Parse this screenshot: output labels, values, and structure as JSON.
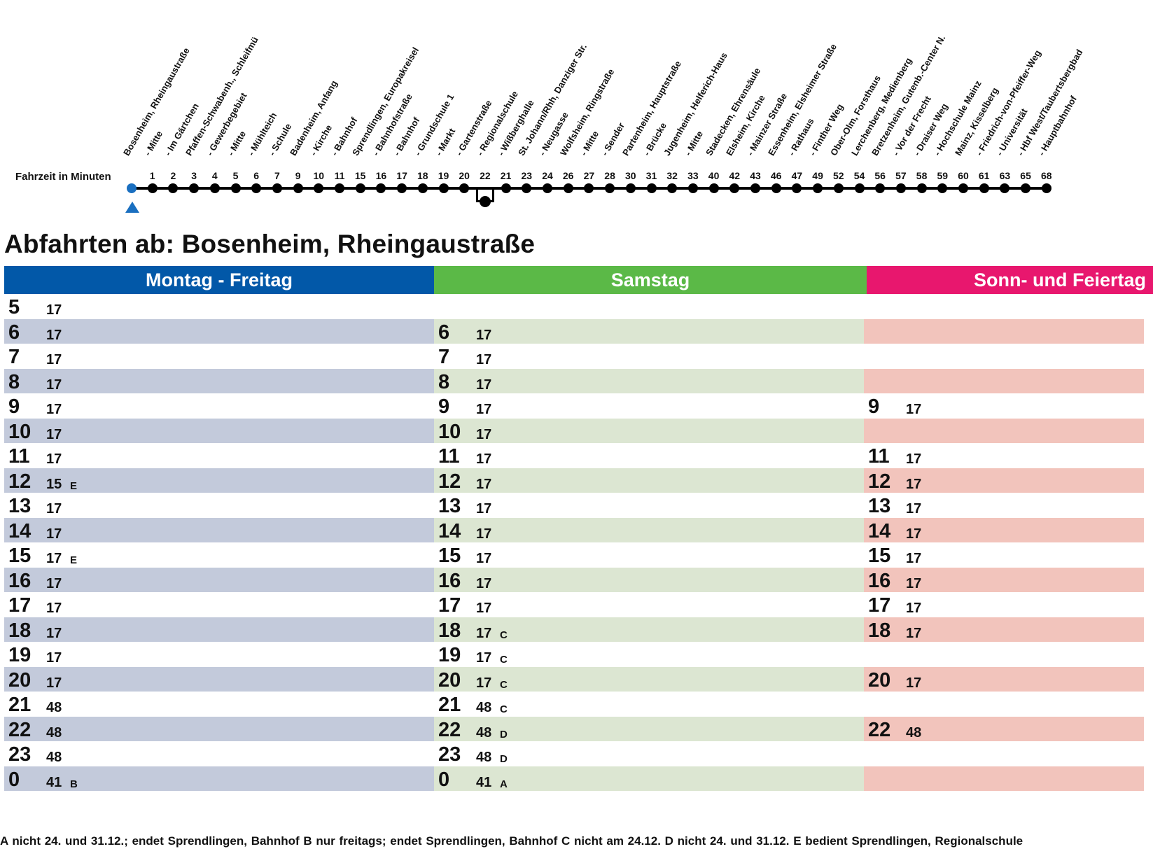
{
  "route": {
    "label": "Fahrzeit in Minuten",
    "stops": [
      {
        "name": "Bosenheim, Rheingaustraße",
        "min": ""
      },
      {
        "name": "- Mitte",
        "min": "1"
      },
      {
        "name": "- Im Gärtchen",
        "min": "2"
      },
      {
        "name": "Pfaffen-Schwabenh., Schleifmü",
        "min": "3"
      },
      {
        "name": "- Gewerbegebiet",
        "min": "4"
      },
      {
        "name": "- Mitte",
        "min": "5"
      },
      {
        "name": "- Mühlteich",
        "min": "6"
      },
      {
        "name": "- Schule",
        "min": "7"
      },
      {
        "name": "Badenheim, Anfang",
        "min": "9"
      },
      {
        "name": "- Kirche",
        "min": "10"
      },
      {
        "name": "- Bahnhof",
        "min": "11"
      },
      {
        "name": "Sprendlingen, Europakreisel",
        "min": "15"
      },
      {
        "name": "- Bahnhofstraße",
        "min": "16"
      },
      {
        "name": "- Bahnhof",
        "min": "17"
      },
      {
        "name": "- Grundschule 1",
        "min": "18"
      },
      {
        "name": "- Markt",
        "min": "19"
      },
      {
        "name": "- Gartenstraße",
        "min": "20"
      },
      {
        "name": "- Regionalschule",
        "min": "22"
      },
      {
        "name": "- Wißberghalle",
        "min": "21"
      },
      {
        "name": "St. Johann/Rhh, Danziger Str.",
        "min": "23"
      },
      {
        "name": "- Neugasse",
        "min": "24"
      },
      {
        "name": "Wolfsheim, Ringstraße",
        "min": "26"
      },
      {
        "name": "- Mitte",
        "min": "27"
      },
      {
        "name": "- Sender",
        "min": "28"
      },
      {
        "name": "Partenheim, Hauptstraße",
        "min": "30"
      },
      {
        "name": "- Brücke",
        "min": "31"
      },
      {
        "name": "Jugenheim, Helferich-Haus",
        "min": "32"
      },
      {
        "name": "- Mitte",
        "min": "33"
      },
      {
        "name": "Stadecken, Ehrensäule",
        "min": "40"
      },
      {
        "name": "Elsheim, Kirche",
        "min": "42"
      },
      {
        "name": "- Mainzer Straße",
        "min": "43"
      },
      {
        "name": "Essenheim, Elsheimer Straße",
        "min": "46"
      },
      {
        "name": "- Rathaus",
        "min": "47"
      },
      {
        "name": "- Finther Weg",
        "min": "49"
      },
      {
        "name": "Ober-Olm, Forsthaus",
        "min": "52"
      },
      {
        "name": "Lerchenberg, Medienberg",
        "min": "54"
      },
      {
        "name": "Bretzenheim, Gutenb.-Center N.",
        "min": "56"
      },
      {
        "name": "- Vor der Frecht",
        "min": "57"
      },
      {
        "name": "- Draiser Weg",
        "min": "58"
      },
      {
        "name": "- Hochschule Mainz",
        "min": "59"
      },
      {
        "name": "Mainz, Kisselberg",
        "min": "60"
      },
      {
        "name": "- Friedrich-von-Pfeiffer-Weg",
        "min": "61"
      },
      {
        "name": "- Universität",
        "min": "63"
      },
      {
        "name": "- Hbf West/Taubertsbergbad",
        "min": "65"
      },
      {
        "name": "- Hauptbahnhof",
        "min": "68"
      }
    ]
  },
  "title": "Abfahrten ab: Bosenheim, Rheingaustraße",
  "columns": {
    "weekday": {
      "header": "Montag - Freitag",
      "colors": {
        "band": "#c3cadb"
      },
      "rows": [
        {
          "hour": "5",
          "minutes": "17",
          "note": ""
        },
        {
          "hour": "6",
          "minutes": "17",
          "note": ""
        },
        {
          "hour": "7",
          "minutes": "17",
          "note": ""
        },
        {
          "hour": "8",
          "minutes": "17",
          "note": ""
        },
        {
          "hour": "9",
          "minutes": "17",
          "note": ""
        },
        {
          "hour": "10",
          "minutes": "17",
          "note": ""
        },
        {
          "hour": "11",
          "minutes": "17",
          "note": ""
        },
        {
          "hour": "12",
          "minutes": "15",
          "note": "E"
        },
        {
          "hour": "13",
          "minutes": "17",
          "note": ""
        },
        {
          "hour": "14",
          "minutes": "17",
          "note": ""
        },
        {
          "hour": "15",
          "minutes": "17",
          "note": "E"
        },
        {
          "hour": "16",
          "minutes": "17",
          "note": ""
        },
        {
          "hour": "17",
          "minutes": "17",
          "note": ""
        },
        {
          "hour": "18",
          "minutes": "17",
          "note": ""
        },
        {
          "hour": "19",
          "minutes": "17",
          "note": ""
        },
        {
          "hour": "20",
          "minutes": "17",
          "note": ""
        },
        {
          "hour": "21",
          "minutes": "48",
          "note": ""
        },
        {
          "hour": "22",
          "minutes": "48",
          "note": ""
        },
        {
          "hour": "23",
          "minutes": "48",
          "note": ""
        },
        {
          "hour": "0",
          "minutes": "41",
          "note": "B"
        }
      ]
    },
    "saturday": {
      "header": "Samstag",
      "colors": {
        "band": "#dce6d2"
      },
      "rows": [
        {
          "hour": "",
          "minutes": "",
          "note": ""
        },
        {
          "hour": "6",
          "minutes": "17",
          "note": ""
        },
        {
          "hour": "7",
          "minutes": "17",
          "note": ""
        },
        {
          "hour": "8",
          "minutes": "17",
          "note": ""
        },
        {
          "hour": "9",
          "minutes": "17",
          "note": ""
        },
        {
          "hour": "10",
          "minutes": "17",
          "note": ""
        },
        {
          "hour": "11",
          "minutes": "17",
          "note": ""
        },
        {
          "hour": "12",
          "minutes": "17",
          "note": ""
        },
        {
          "hour": "13",
          "minutes": "17",
          "note": ""
        },
        {
          "hour": "14",
          "minutes": "17",
          "note": ""
        },
        {
          "hour": "15",
          "minutes": "17",
          "note": ""
        },
        {
          "hour": "16",
          "minutes": "17",
          "note": ""
        },
        {
          "hour": "17",
          "minutes": "17",
          "note": ""
        },
        {
          "hour": "18",
          "minutes": "17",
          "note": "C"
        },
        {
          "hour": "19",
          "minutes": "17",
          "note": "C"
        },
        {
          "hour": "20",
          "minutes": "17",
          "note": "C"
        },
        {
          "hour": "21",
          "minutes": "48",
          "note": "C"
        },
        {
          "hour": "22",
          "minutes": "48",
          "note": "D"
        },
        {
          "hour": "23",
          "minutes": "48",
          "note": "D"
        },
        {
          "hour": "0",
          "minutes": "41",
          "note": "A"
        }
      ]
    },
    "sunday": {
      "header": "Sonn- und Feiertag",
      "colors": {
        "band": "#f2c4bc"
      },
      "rows": [
        {
          "hour": "",
          "minutes": "",
          "note": ""
        },
        {
          "hour": "",
          "minutes": "",
          "note": ""
        },
        {
          "hour": "",
          "minutes": "",
          "note": ""
        },
        {
          "hour": "",
          "minutes": "",
          "note": ""
        },
        {
          "hour": "9",
          "minutes": "17",
          "note": ""
        },
        {
          "hour": "",
          "minutes": "",
          "note": ""
        },
        {
          "hour": "11",
          "minutes": "17",
          "note": ""
        },
        {
          "hour": "12",
          "minutes": "17",
          "note": ""
        },
        {
          "hour": "13",
          "minutes": "17",
          "note": ""
        },
        {
          "hour": "14",
          "minutes": "17",
          "note": ""
        },
        {
          "hour": "15",
          "minutes": "17",
          "note": ""
        },
        {
          "hour": "16",
          "minutes": "17",
          "note": ""
        },
        {
          "hour": "17",
          "minutes": "17",
          "note": ""
        },
        {
          "hour": "18",
          "minutes": "17",
          "note": ""
        },
        {
          "hour": "",
          "minutes": "",
          "note": ""
        },
        {
          "hour": "20",
          "minutes": "17",
          "note": ""
        },
        {
          "hour": "",
          "minutes": "",
          "note": ""
        },
        {
          "hour": "22",
          "minutes": "48",
          "note": ""
        },
        {
          "hour": "",
          "minutes": "",
          "note": ""
        },
        {
          "hour": "",
          "minutes": "",
          "note": ""
        }
      ]
    }
  },
  "footnotes": "A nicht 24. und 31.12.; endet Sprendlingen, Bahnhof   B nur freitags; endet Sprendlingen, Bahnhof   C nicht am 24.12.   D nicht 24. und 31.12.   E bedient Sprendlingen, Regionalschule"
}
